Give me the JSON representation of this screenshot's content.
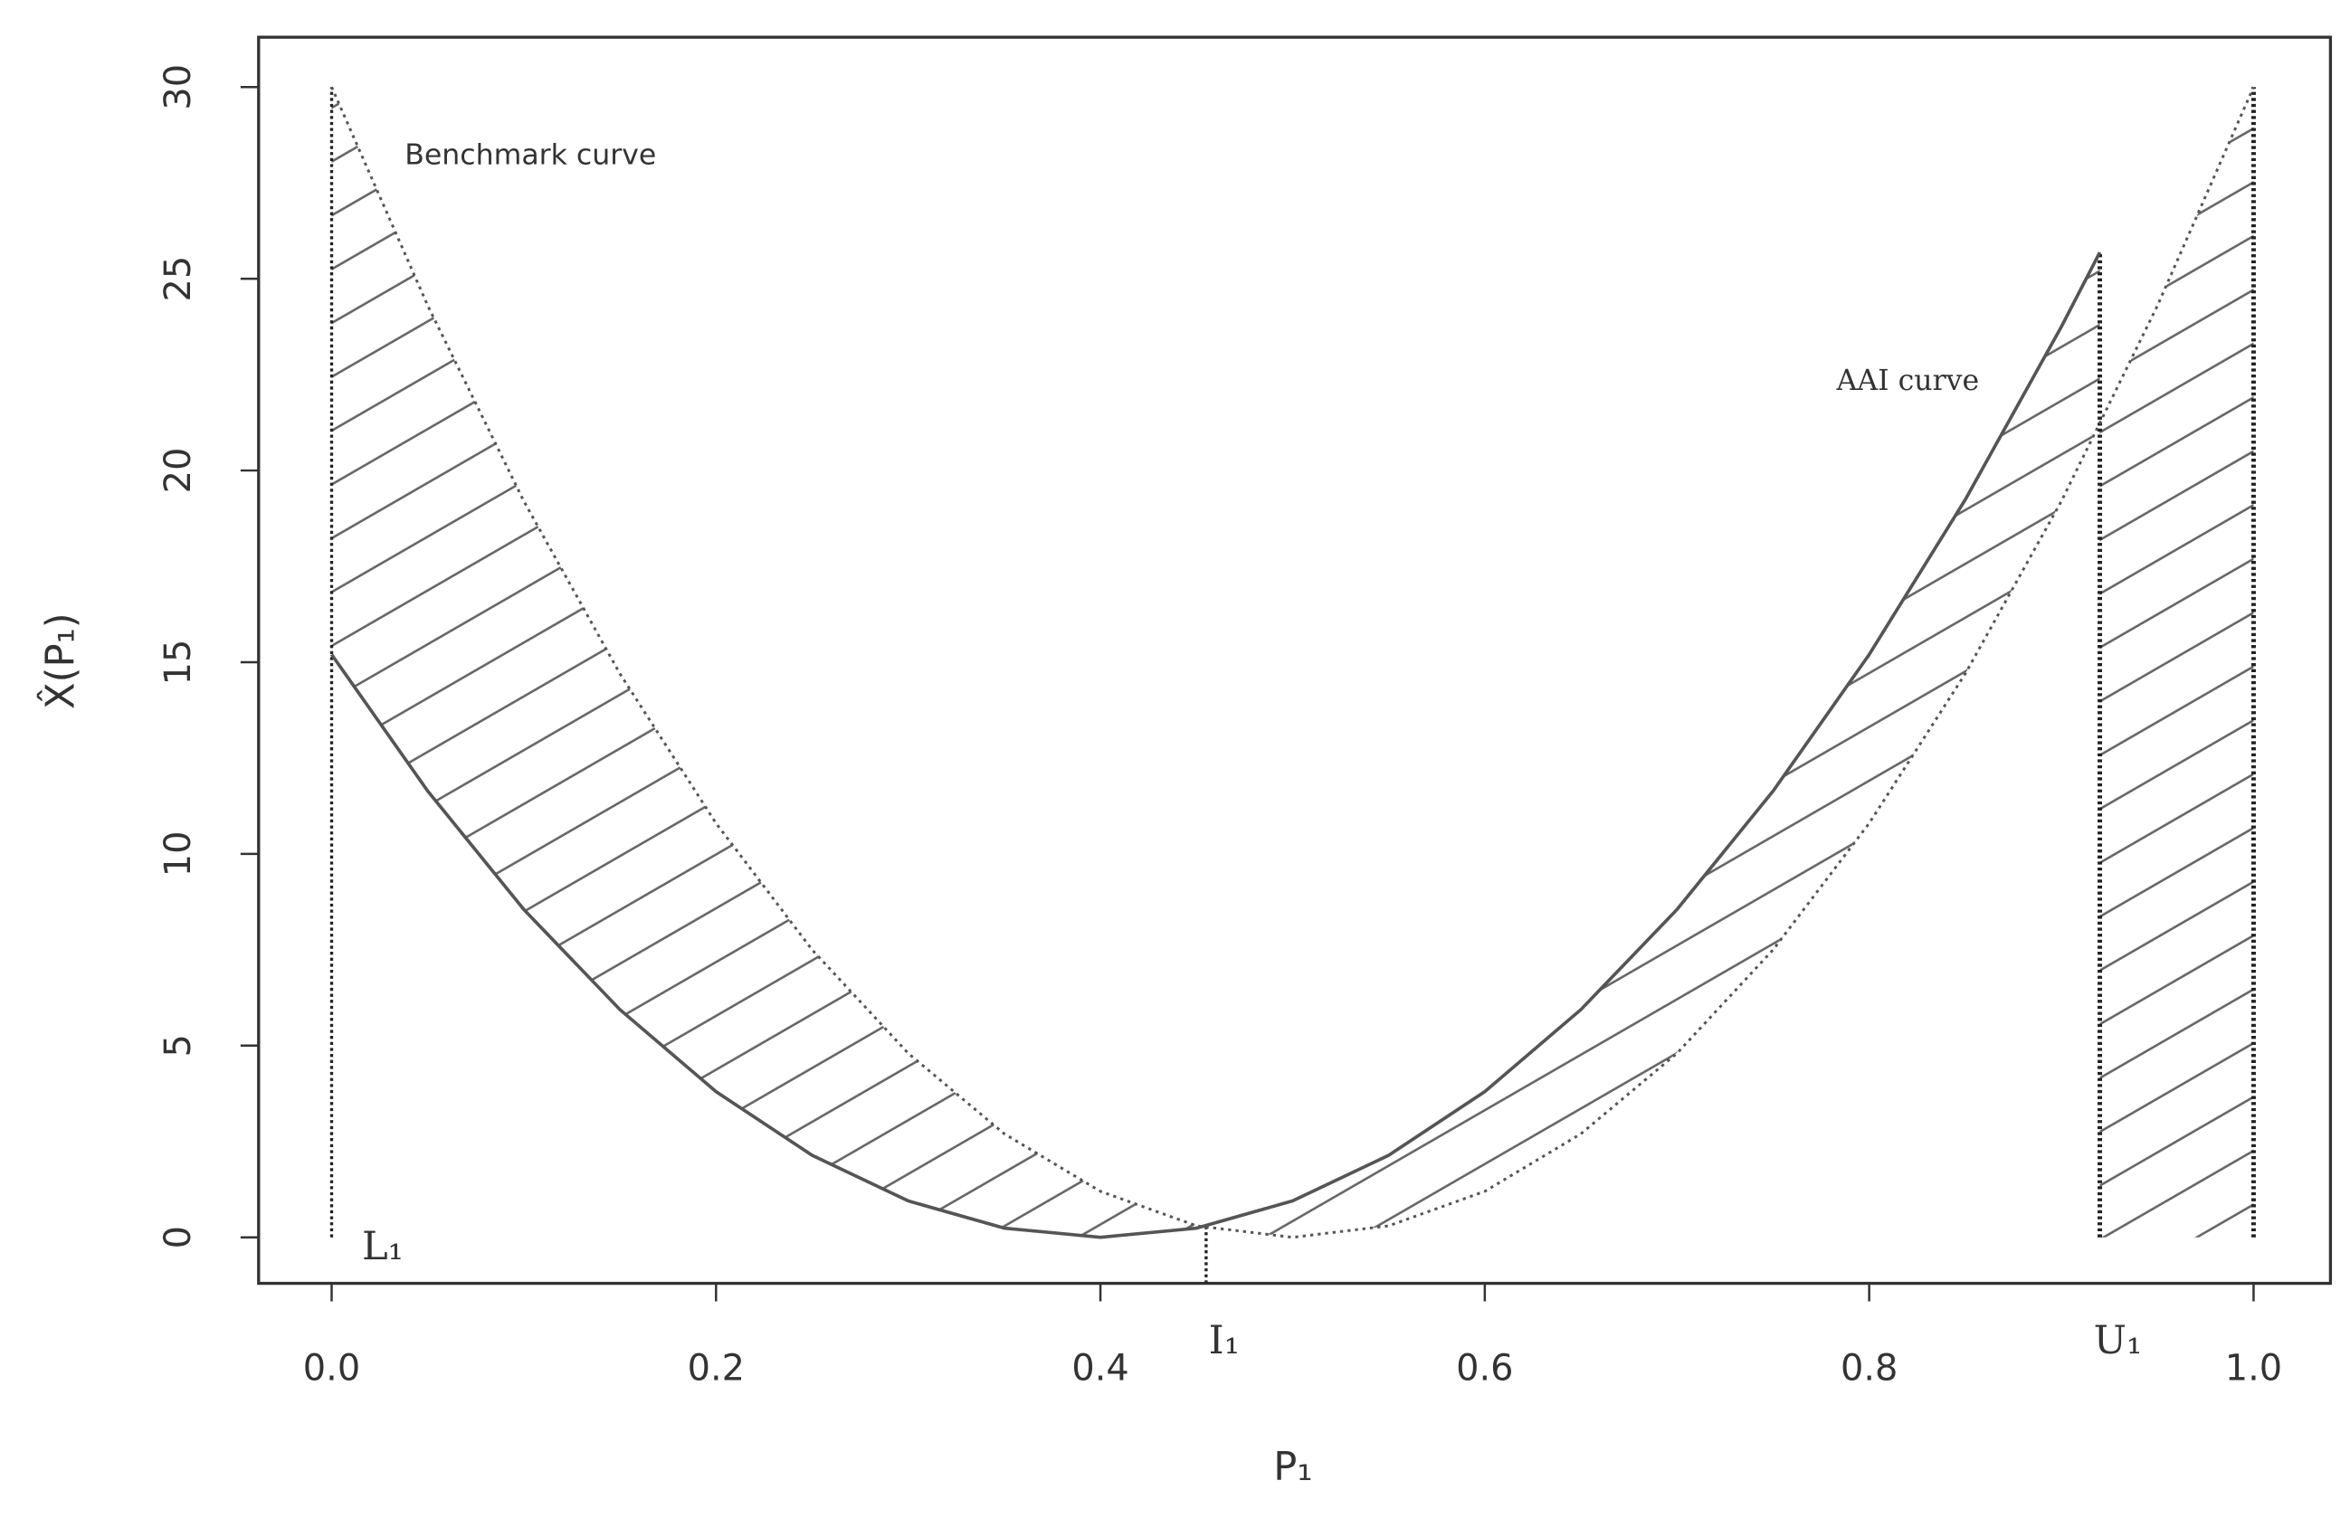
{
  "chart_data": {
    "type": "line",
    "xlabel": "P₁",
    "ylabel": "X̂(P₁)",
    "xlim": [
      -0.038,
      1.04
    ],
    "ylim": [
      -1.2,
      31.3
    ],
    "xticks": [
      {
        "value": 0,
        "label": "0.0"
      },
      0.2,
      0.4,
      0.6,
      0.8,
      {
        "value": 1,
        "label": "1.0"
      }
    ],
    "yticks": [
      0,
      5,
      10,
      15,
      20,
      25,
      30
    ],
    "series": [
      {
        "name": "Benchmark curve",
        "color": "#555555",
        "style": "dotted",
        "x": [
          0,
          0.05,
          0.1,
          0.15,
          0.2,
          0.25,
          0.3,
          0.35,
          0.4,
          0.45,
          0.5,
          0.55,
          0.6,
          0.65,
          0.7,
          0.75,
          0.8,
          0.85,
          0.9,
          0.95,
          1
        ],
        "values": [
          30,
          24.3,
          19.2,
          14.7,
          10.8,
          7.5,
          4.8,
          2.7,
          1.2,
          0.3,
          0,
          0.3,
          1.2,
          2.7,
          4.8,
          7.5,
          10.8,
          14.7,
          19.2,
          24.3,
          30
        ]
      },
      {
        "name": "AAI curve",
        "color": "#555555",
        "style": "solid",
        "x": [
          0,
          0.05,
          0.1,
          0.15,
          0.2,
          0.25,
          0.3,
          0.35,
          0.4,
          0.45,
          0.5,
          0.55,
          0.6,
          0.65,
          0.7,
          0.75,
          0.8,
          0.85,
          0.9,
          0.92
        ],
        "values": [
          15.2,
          11.64,
          8.55,
          5.94,
          3.8,
          2.14,
          0.95,
          0.24,
          0,
          0.24,
          0.95,
          2.14,
          3.8,
          5.94,
          8.55,
          11.64,
          15.2,
          19.24,
          23.75,
          25.69
        ]
      }
    ],
    "markers": [
      {
        "label": "L₁",
        "x": 0
      },
      {
        "label": "I₁",
        "x": 0.455
      },
      {
        "label": "U₁",
        "x": 0.92
      }
    ]
  }
}
